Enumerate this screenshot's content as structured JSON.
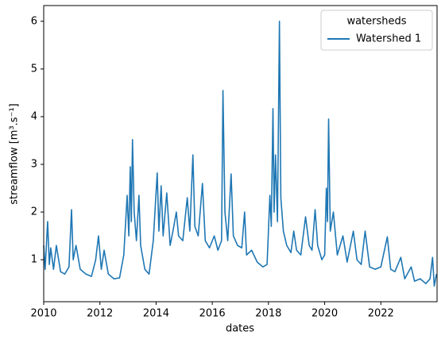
{
  "chart_data": {
    "type": "line",
    "xlabel": "dates",
    "ylabel": "streamflow [m³.s⁻¹]",
    "x": [
      2010.0,
      2010.05,
      2010.14,
      2010.2,
      2010.25,
      2010.35,
      2010.45,
      2010.6,
      2010.75,
      2010.9,
      2010.99,
      2011.05,
      2011.15,
      2011.3,
      2011.5,
      2011.7,
      2011.85,
      2011.95,
      2012.05,
      2012.15,
      2012.3,
      2012.5,
      2012.7,
      2012.85,
      2012.97,
      2013.03,
      2013.08,
      2013.12,
      2013.16,
      2013.22,
      2013.3,
      2013.39,
      2013.45,
      2013.6,
      2013.75,
      2013.9,
      2014.04,
      2014.1,
      2014.18,
      2014.25,
      2014.38,
      2014.5,
      2014.6,
      2014.72,
      2014.8,
      2014.95,
      2015.11,
      2015.2,
      2015.31,
      2015.38,
      2015.5,
      2015.65,
      2015.75,
      2015.9,
      2016.07,
      2016.2,
      2016.33,
      2016.38,
      2016.45,
      2016.55,
      2016.67,
      2016.75,
      2016.9,
      2017.05,
      2017.15,
      2017.22,
      2017.4,
      2017.6,
      2017.8,
      2017.95,
      2018.05,
      2018.1,
      2018.16,
      2018.2,
      2018.25,
      2018.32,
      2018.39,
      2018.44,
      2018.53,
      2018.65,
      2018.8,
      2018.9,
      2019.0,
      2019.15,
      2019.32,
      2019.45,
      2019.55,
      2019.66,
      2019.75,
      2019.9,
      2020.0,
      2020.06,
      2020.1,
      2020.14,
      2020.2,
      2020.31,
      2020.45,
      2020.65,
      2020.8,
      2021.02,
      2021.15,
      2021.3,
      2021.44,
      2021.6,
      2021.8,
      2022.0,
      2022.23,
      2022.35,
      2022.5,
      2022.71,
      2022.85,
      2023.08,
      2023.2,
      2023.4,
      2023.6,
      2023.75,
      2023.84,
      2023.9,
      2023.98
    ],
    "series": [
      {
        "name": "Watershed 1",
        "color": "#1f77b4",
        "values": [
          1.3,
          0.8,
          1.8,
          0.9,
          1.25,
          0.8,
          1.3,
          0.75,
          0.7,
          0.85,
          2.05,
          1.0,
          1.3,
          0.8,
          0.7,
          0.65,
          1.0,
          1.5,
          0.8,
          1.2,
          0.7,
          0.6,
          0.62,
          1.1,
          2.35,
          1.5,
          2.95,
          1.8,
          3.52,
          2.0,
          1.4,
          2.35,
          1.3,
          0.8,
          0.7,
          1.4,
          2.82,
          1.6,
          2.55,
          1.5,
          2.4,
          1.3,
          1.6,
          2.0,
          1.5,
          1.4,
          2.3,
          1.6,
          3.2,
          1.7,
          1.5,
          2.6,
          1.4,
          1.25,
          1.5,
          1.2,
          1.4,
          4.55,
          2.0,
          1.4,
          2.8,
          1.5,
          1.3,
          1.25,
          2.0,
          1.1,
          1.2,
          0.95,
          0.85,
          0.9,
          2.35,
          1.7,
          4.17,
          2.0,
          3.2,
          1.8,
          6.0,
          2.3,
          1.6,
          1.3,
          1.15,
          1.6,
          1.2,
          1.1,
          1.9,
          1.3,
          1.2,
          2.05,
          1.3,
          1.0,
          1.1,
          2.5,
          1.8,
          3.95,
          1.6,
          2.0,
          1.1,
          1.5,
          0.95,
          1.6,
          1.0,
          0.9,
          1.6,
          0.85,
          0.8,
          0.85,
          1.48,
          0.8,
          0.75,
          1.05,
          0.6,
          0.85,
          0.55,
          0.6,
          0.5,
          0.6,
          1.05,
          0.45,
          0.7
        ]
      }
    ],
    "xlim": [
      2010,
      2024
    ],
    "xticks": [
      2010,
      2012,
      2014,
      2016,
      2018,
      2020,
      2022
    ],
    "ylim": [
      0.12,
      6.33
    ],
    "yticks": [
      1,
      2,
      3,
      4,
      5,
      6
    ],
    "legend": {
      "title": "watersheds",
      "loc": "upper right"
    }
  }
}
